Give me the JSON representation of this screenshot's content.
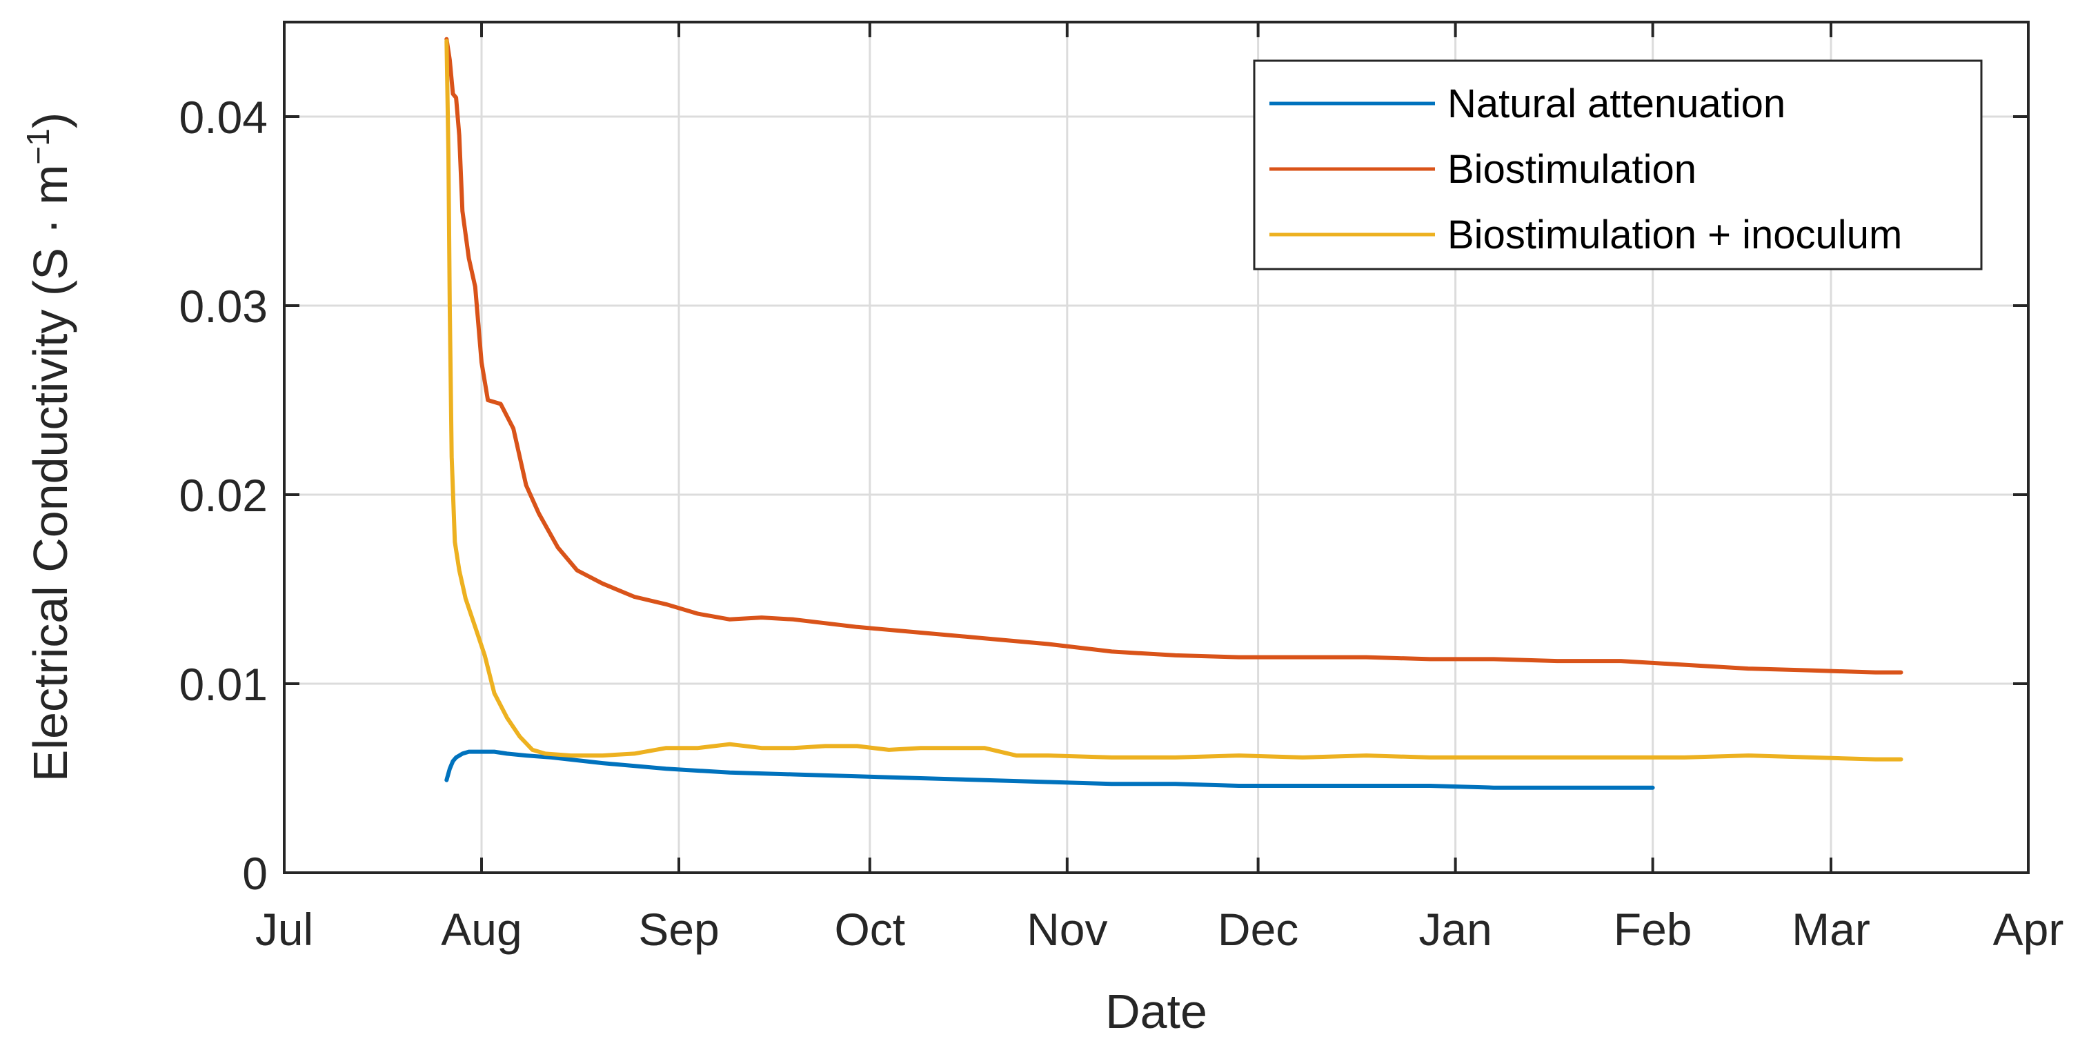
{
  "chart_data": {
    "type": "line",
    "title": "",
    "xlabel": "Date",
    "ylabel": "Electrical Conductivity (S · m⁻¹)",
    "ylabel_main": "Electrical Conductivity (S · m",
    "ylabel_sup": "−1",
    "ylabel_close": ")",
    "x_ticks": [
      "Jul",
      "Aug",
      "Sep",
      "Oct",
      "Nov",
      "Dec",
      "Jan",
      "Feb",
      "Mar",
      "Apr"
    ],
    "x_tick_days": [
      0,
      31,
      62,
      92,
      123,
      153,
      184,
      215,
      243,
      274
    ],
    "xlim_days": [
      0,
      274
    ],
    "x_units": "days since Jul 1",
    "y_ticks": [
      0,
      0.01,
      0.02,
      0.03,
      0.04
    ],
    "y_tick_labels": [
      "0",
      "0.01",
      "0.02",
      "0.03",
      "0.04"
    ],
    "ylim": [
      0,
      0.045
    ],
    "grid": true,
    "legend_position": "top-right",
    "series": [
      {
        "name": "Natural attenuation",
        "color": "#0072BD",
        "x": [
          25.5,
          26,
          26.5,
          27,
          28,
          29,
          30,
          31,
          33,
          35,
          38,
          42,
          50,
          60,
          70,
          80,
          90,
          100,
          110,
          120,
          130,
          140,
          150,
          160,
          170,
          180,
          190,
          200,
          210,
          215
        ],
        "y": [
          0.0049,
          0.0055,
          0.0059,
          0.0061,
          0.0063,
          0.0064,
          0.0064,
          0.0064,
          0.0064,
          0.0063,
          0.0062,
          0.0061,
          0.0058,
          0.0055,
          0.0053,
          0.0052,
          0.0051,
          0.005,
          0.0049,
          0.0048,
          0.0047,
          0.0047,
          0.0046,
          0.0046,
          0.0046,
          0.0046,
          0.0045,
          0.0045,
          0.0045,
          0.0045
        ]
      },
      {
        "name": "Biostimulation",
        "color": "#D95319",
        "x": [
          25.5,
          26,
          26.5,
          27,
          27.5,
          28,
          29,
          30,
          31,
          32,
          34,
          36,
          38,
          40,
          43,
          46,
          50,
          55,
          60,
          65,
          70,
          75,
          80,
          90,
          100,
          110,
          120,
          130,
          140,
          150,
          160,
          170,
          180,
          190,
          200,
          210,
          220,
          230,
          240,
          250,
          254
        ],
        "y": [
          0.0441,
          0.043,
          0.0412,
          0.041,
          0.039,
          0.035,
          0.0325,
          0.031,
          0.027,
          0.025,
          0.0248,
          0.0235,
          0.0205,
          0.019,
          0.0172,
          0.016,
          0.0153,
          0.0146,
          0.0142,
          0.0137,
          0.0134,
          0.0135,
          0.0134,
          0.013,
          0.0127,
          0.0124,
          0.0121,
          0.0117,
          0.0115,
          0.0114,
          0.0114,
          0.0114,
          0.0113,
          0.0113,
          0.0112,
          0.0112,
          0.011,
          0.0108,
          0.0107,
          0.0106,
          0.0106
        ]
      },
      {
        "name": "Biostimulation + inoculum",
        "color": "#EDB120",
        "x": [
          25.5,
          25.8,
          26,
          26.3,
          26.8,
          27.5,
          28.5,
          30,
          31.5,
          33,
          35,
          37,
          39,
          41,
          45,
          50,
          55,
          60,
          65,
          70,
          75,
          80,
          85,
          90,
          95,
          100,
          105,
          110,
          115,
          120,
          130,
          140,
          150,
          160,
          170,
          180,
          190,
          200,
          210,
          220,
          230,
          240,
          250,
          254
        ],
        "y": [
          0.044,
          0.038,
          0.03,
          0.022,
          0.0175,
          0.016,
          0.0145,
          0.013,
          0.0115,
          0.0095,
          0.0082,
          0.0072,
          0.0065,
          0.0063,
          0.0062,
          0.0062,
          0.0063,
          0.0066,
          0.0066,
          0.0068,
          0.0066,
          0.0066,
          0.0067,
          0.0067,
          0.0065,
          0.0066,
          0.0066,
          0.0066,
          0.0062,
          0.0062,
          0.0061,
          0.0061,
          0.0062,
          0.0061,
          0.0062,
          0.0061,
          0.0061,
          0.0061,
          0.0061,
          0.0061,
          0.0062,
          0.0061,
          0.006,
          0.006
        ]
      }
    ]
  }
}
